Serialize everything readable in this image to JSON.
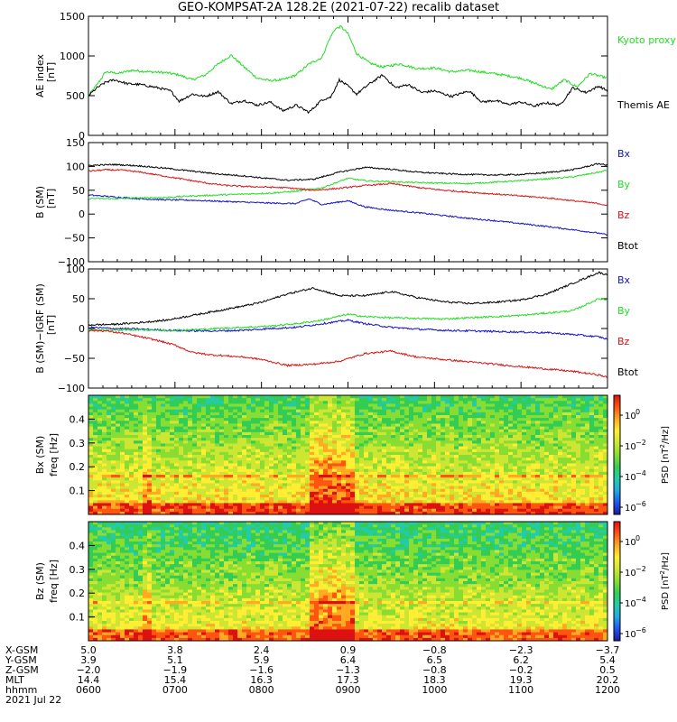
{
  "title": "GEO-KOMPSAT-2A 128.2E (2021-07-22) recalib dataset",
  "colors": {
    "black": "#000000",
    "green": "#22dd22",
    "red": "#dd1111",
    "blue": "#1111cc"
  },
  "chart_data": [
    {
      "type": "line",
      "panel": "ae",
      "ylabel": "AE index",
      "yunit": "[nT]",
      "ylim": [
        0,
        1500
      ],
      "yticks": [
        "0",
        "500",
        "1000",
        "1500"
      ],
      "xlim_hours": [
        6,
        12
      ],
      "series": [
        {
          "name": "Kyoto proxy AE",
          "color": "#22dd22",
          "x": [
            6.0,
            6.1,
            6.2,
            6.35,
            6.5,
            6.7,
            6.9,
            7.05,
            7.2,
            7.35,
            7.5,
            7.65,
            7.8,
            7.95,
            8.1,
            8.25,
            8.4,
            8.55,
            8.7,
            8.78,
            8.85,
            8.92,
            9.0,
            9.1,
            9.25,
            9.4,
            9.6,
            9.8,
            10.0,
            10.2,
            10.4,
            10.6,
            10.8,
            11.0,
            11.2,
            11.35,
            11.5,
            11.65,
            11.8,
            12.0
          ],
          "y": [
            500,
            640,
            800,
            780,
            820,
            800,
            790,
            760,
            700,
            760,
            900,
            1010,
            860,
            720,
            690,
            700,
            760,
            900,
            980,
            1200,
            1340,
            1370,
            1280,
            1030,
            910,
            860,
            900,
            840,
            850,
            800,
            820,
            790,
            760,
            720,
            640,
            580,
            700,
            610,
            780,
            720
          ]
        },
        {
          "name": "Themis AE",
          "color": "#000000",
          "x": [
            6.0,
            6.1,
            6.2,
            6.3,
            6.45,
            6.6,
            6.8,
            6.95,
            7.05,
            7.2,
            7.35,
            7.5,
            7.65,
            7.8,
            7.95,
            8.1,
            8.25,
            8.4,
            8.55,
            8.7,
            8.8,
            8.9,
            9.0,
            9.1,
            9.25,
            9.4,
            9.55,
            9.7,
            9.85,
            10.0,
            10.2,
            10.4,
            10.55,
            10.7,
            10.85,
            11.0,
            11.15,
            11.3,
            11.45,
            11.6,
            11.75,
            11.9,
            12.0
          ],
          "y": [
            500,
            600,
            670,
            700,
            650,
            640,
            600,
            560,
            430,
            520,
            490,
            550,
            400,
            440,
            380,
            420,
            310,
            380,
            290,
            450,
            480,
            700,
            620,
            520,
            650,
            760,
            600,
            640,
            540,
            560,
            490,
            560,
            420,
            440,
            390,
            420,
            370,
            410,
            380,
            600,
            540,
            620,
            560
          ]
        }
      ]
    },
    {
      "type": "line",
      "panel": "b_sm",
      "ylabel": "B (SM)",
      "yunit": "[nT]",
      "ylim": [
        -100,
        150
      ],
      "yticks": [
        "−100",
        "−50",
        "0",
        "50",
        "100",
        "150"
      ],
      "xlim_hours": [
        6,
        12
      ],
      "series": [
        {
          "name": "Bx",
          "color": "#1111cc",
          "x": [
            6.0,
            6.3,
            6.6,
            6.9,
            7.2,
            7.5,
            7.8,
            8.1,
            8.4,
            8.55,
            8.7,
            8.85,
            9.0,
            9.2,
            9.5,
            9.8,
            10.1,
            10.4,
            10.7,
            11.0,
            11.3,
            11.6,
            11.9,
            12.0
          ],
          "y": [
            40,
            36,
            32,
            30,
            29,
            27,
            25,
            23,
            22,
            32,
            20,
            24,
            28,
            15,
            8,
            3,
            -3,
            -9,
            -14,
            -20,
            -26,
            -33,
            -40,
            -44
          ]
        },
        {
          "name": "By",
          "color": "#22dd22",
          "x": [
            6.0,
            6.3,
            6.6,
            6.9,
            7.2,
            7.5,
            7.8,
            8.1,
            8.4,
            8.7,
            9.0,
            9.2,
            9.5,
            9.8,
            10.1,
            10.4,
            10.7,
            11.0,
            11.3,
            11.6,
            11.9,
            12.0
          ],
          "y": [
            33,
            32,
            34,
            35,
            38,
            40,
            42,
            44,
            48,
            55,
            75,
            70,
            68,
            66,
            65,
            64,
            67,
            70,
            74,
            78,
            88,
            92
          ]
        },
        {
          "name": "Bz",
          "color": "#dd1111",
          "x": [
            6.0,
            6.2,
            6.4,
            6.6,
            6.8,
            7.0,
            7.2,
            7.4,
            7.6,
            7.8,
            8.0,
            8.3,
            8.6,
            8.9,
            9.2,
            9.5,
            9.8,
            10.1,
            10.4,
            10.7,
            11.0,
            11.3,
            11.6,
            11.9,
            12.0
          ],
          "y": [
            90,
            93,
            92,
            88,
            82,
            76,
            70,
            64,
            60,
            58,
            57,
            55,
            50,
            54,
            60,
            64,
            56,
            50,
            46,
            42,
            38,
            34,
            28,
            22,
            18
          ]
        },
        {
          "name": "Btot",
          "color": "#000000",
          "x": [
            6.0,
            6.3,
            6.6,
            6.9,
            7.2,
            7.5,
            7.8,
            8.0,
            8.3,
            8.6,
            8.9,
            9.2,
            9.5,
            9.8,
            10.1,
            10.4,
            10.7,
            11.0,
            11.3,
            11.6,
            11.9,
            12.0
          ],
          "y": [
            102,
            104,
            101,
            96,
            90,
            84,
            80,
            76,
            71,
            73,
            88,
            98,
            94,
            88,
            85,
            83,
            82,
            83,
            87,
            93,
            106,
            102
          ]
        }
      ]
    },
    {
      "type": "line",
      "panel": "b_minus_igrf",
      "ylabel": "B (SM)−IGRF (SM)",
      "yunit": "[nT]",
      "ylim": [
        -100,
        100
      ],
      "yticks": [
        "−100",
        "−50",
        "0",
        "50",
        "100"
      ],
      "xlim_hours": [
        6,
        12
      ],
      "series": [
        {
          "name": "Bx",
          "color": "#1111cc",
          "x": [
            6.0,
            6.3,
            6.6,
            6.9,
            7.2,
            7.5,
            7.8,
            8.1,
            8.4,
            8.7,
            9.0,
            9.2,
            9.5,
            9.8,
            10.1,
            10.4,
            10.7,
            11.0,
            11.3,
            11.6,
            11.9,
            12.0
          ],
          "y": [
            2,
            0,
            -1,
            -3,
            -4,
            -4,
            -3,
            0,
            2,
            8,
            14,
            8,
            2,
            -1,
            -3,
            -4,
            -5,
            -6,
            -7,
            -10,
            -14,
            -18
          ]
        },
        {
          "name": "By",
          "color": "#22dd22",
          "x": [
            6.0,
            6.3,
            6.6,
            6.9,
            7.2,
            7.5,
            7.8,
            8.1,
            8.4,
            8.7,
            9.0,
            9.2,
            9.5,
            9.8,
            10.1,
            10.4,
            10.7,
            11.0,
            11.3,
            11.6,
            11.9,
            12.0
          ],
          "y": [
            -2,
            -3,
            -2,
            -3,
            -2,
            0,
            2,
            4,
            8,
            14,
            24,
            20,
            18,
            17,
            16,
            18,
            20,
            22,
            26,
            30,
            50,
            48
          ]
        },
        {
          "name": "Bz",
          "color": "#dd1111",
          "x": [
            6.0,
            6.2,
            6.4,
            6.6,
            6.8,
            7.0,
            7.2,
            7.4,
            7.6,
            7.8,
            8.0,
            8.3,
            8.6,
            8.9,
            9.2,
            9.5,
            9.8,
            10.1,
            10.4,
            10.7,
            11.0,
            11.3,
            11.6,
            11.9,
            12.0
          ],
          "y": [
            -3,
            -4,
            -8,
            -14,
            -20,
            -28,
            -40,
            -44,
            -46,
            -48,
            -52,
            -62,
            -60,
            -55,
            -42,
            -38,
            -48,
            -52,
            -56,
            -60,
            -64,
            -68,
            -72,
            -78,
            -82
          ]
        },
        {
          "name": "Btot",
          "color": "#000000",
          "x": [
            6.0,
            6.3,
            6.6,
            6.9,
            7.2,
            7.5,
            7.8,
            8.0,
            8.3,
            8.6,
            8.9,
            9.2,
            9.5,
            9.8,
            10.1,
            10.4,
            10.7,
            11.0,
            11.3,
            11.6,
            11.9,
            12.0
          ],
          "y": [
            6,
            7,
            10,
            14,
            22,
            30,
            38,
            44,
            58,
            68,
            55,
            55,
            62,
            52,
            45,
            42,
            44,
            48,
            58,
            76,
            94,
            90
          ]
        }
      ]
    },
    {
      "type": "heatmap",
      "panel": "bx_psd",
      "ylabel": "Bx (SM)",
      "yunit": "freq [Hz]",
      "yticks": [
        "0.1",
        "0.2",
        "0.3",
        "0.4"
      ],
      "ylim": [
        0,
        0.5
      ],
      "colorbar_label": "PSD [nT",
      "colorbar_unit_tail": "/Hz]",
      "colorbar_ticks": [
        "10",
        "10",
        "10",
        "10"
      ],
      "colorbar_exponents": [
        "0",
        "−2",
        "−4",
        "−6"
      ]
    },
    {
      "type": "heatmap",
      "panel": "bz_psd",
      "ylabel": "Bz (SM)",
      "yunit": "freq [Hz]",
      "yticks": [
        "0.1",
        "0.2",
        "0.3",
        "0.4"
      ],
      "ylim": [
        0,
        0.5
      ],
      "colorbar_label": "PSD [nT",
      "colorbar_unit_tail": "/Hz]",
      "colorbar_ticks": [
        "10",
        "10",
        "10",
        "10"
      ],
      "colorbar_exponents": [
        "0",
        "−2",
        "−4",
        "−6"
      ]
    }
  ],
  "ephemeris": {
    "row_labels": [
      "X-GSM",
      "Y-GSM",
      "Z-GSM",
      "MLT",
      "hhmm"
    ],
    "columns": [
      [
        "5.0",
        "3.9",
        "−2.0",
        "14.4",
        "0600"
      ],
      [
        "3.8",
        "5.1",
        "−1.9",
        "15.4",
        "0700"
      ],
      [
        "2.4",
        "5.9",
        "−1.6",
        "16.3",
        "0800"
      ],
      [
        "0.9",
        "6.4",
        "−1.3",
        "17.3",
        "0900"
      ],
      [
        "−0.8",
        "6.5",
        "−0.8",
        "18.3",
        "1000"
      ],
      [
        "−2.3",
        "6.2",
        "−0.2",
        "19.3",
        "1100"
      ],
      [
        "−3.7",
        "5.4",
        "0.5",
        "20.2",
        "1200"
      ]
    ],
    "date": "2021 Jul 22"
  }
}
